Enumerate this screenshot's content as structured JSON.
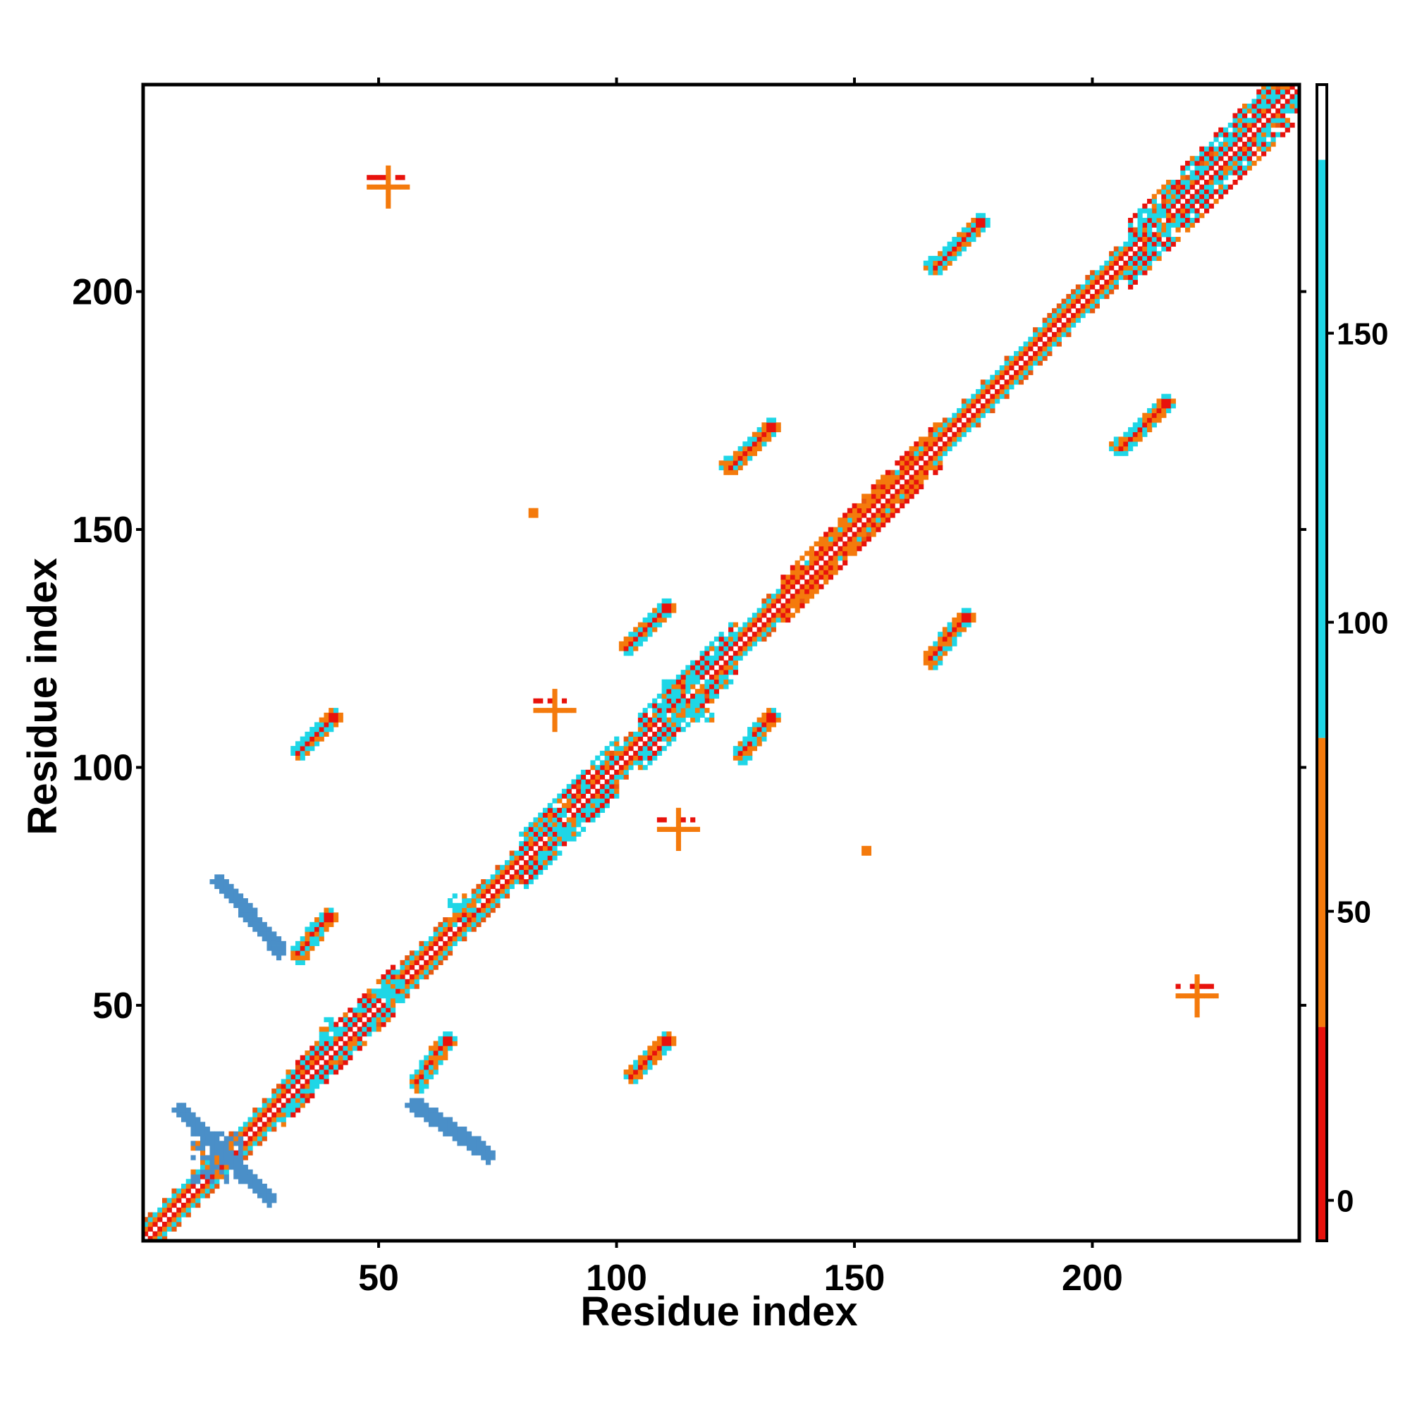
{
  "chart_data": {
    "type": "heatmap",
    "title": "",
    "xlabel": "Residue index",
    "ylabel": "Residue index",
    "xlim": [
      1,
      243
    ],
    "ylim": [
      1,
      243
    ],
    "x_ticks": [
      50,
      100,
      150,
      200
    ],
    "y_ticks": [
      50,
      100,
      150,
      200
    ],
    "colorbar": {
      "ticks": [
        0,
        50,
        100,
        150
      ],
      "range": [
        -7,
        193
      ],
      "bands": [
        {
          "from": -7,
          "to": 30,
          "color": "#e8120c"
        },
        {
          "from": 30,
          "to": 80,
          "color": "#f47a0c"
        },
        {
          "from": 80,
          "to": 180,
          "color": "#1fd6e6"
        },
        {
          "from": 180,
          "to": 193,
          "color": "#ffffff"
        }
      ]
    },
    "colors": {
      "red": "#e8120c",
      "orange": "#f47a0c",
      "dark_orange": "#e85a10",
      "cyan": "#1fd6e6",
      "steel_blue": "#4a8fc8",
      "frame": "#000000"
    },
    "features": [
      {
        "kind": "diagonal",
        "from": 1,
        "to": 243,
        "band": 4
      },
      {
        "kind": "parallel",
        "x": [
          30,
          53
        ],
        "y": [
          30,
          53
        ],
        "band": 2,
        "color": "cyan"
      },
      {
        "kind": "parallel",
        "x": [
          80,
          100
        ],
        "y": [
          80,
          100
        ],
        "band": 3,
        "color": "cyan"
      },
      {
        "kind": "parallel",
        "x": [
          105,
          125
        ],
        "y": [
          105,
          125
        ],
        "band": 3,
        "color": "cyan"
      },
      {
        "kind": "parallel",
        "x": [
          150,
          168
        ],
        "y": [
          150,
          168
        ],
        "band": 2,
        "color": "orange"
      },
      {
        "kind": "parallel",
        "x": [
          135,
          150
        ],
        "y": [
          135,
          150
        ],
        "band": 2,
        "color": "orange"
      },
      {
        "kind": "parallel",
        "x": [
          208,
          243
        ],
        "y": [
          208,
          243
        ],
        "band": 4,
        "color": "cyan"
      },
      {
        "kind": "cluster",
        "x": 16,
        "y": 18,
        "w": 10,
        "h": 10,
        "color": "steel_blue"
      },
      {
        "kind": "antidiag",
        "x": [
          9,
          27
        ],
        "y": [
          28,
          10
        ],
        "band": 1.6,
        "color": "steel_blue"
      },
      {
        "kind": "antidiag",
        "x": [
          17,
          29
        ],
        "y": [
          76,
          62
        ],
        "band": 1.6,
        "color": "steel_blue"
      },
      {
        "kind": "antidiag",
        "x": [
          58,
          73
        ],
        "y": [
          29,
          19
        ],
        "band": 1.6,
        "color": "steel_blue"
      },
      {
        "kind": "segment",
        "x": [
          33,
          39
        ],
        "y": [
          60,
          68
        ],
        "band": 1.5,
        "color": "red"
      },
      {
        "kind": "segment",
        "x": [
          33,
          40
        ],
        "y": [
          103,
          110
        ],
        "band": 1.5,
        "color": "red"
      },
      {
        "kind": "segment",
        "x": [
          102,
          110
        ],
        "y": [
          125,
          133
        ],
        "band": 1.5,
        "color": "red"
      },
      {
        "kind": "segment",
        "x": [
          126,
          132
        ],
        "y": [
          102,
          110
        ],
        "band": 1.5,
        "color": "red"
      },
      {
        "kind": "segment",
        "x": [
          103,
          110
        ],
        "y": [
          35,
          42
        ],
        "band": 1.5,
        "color": "red"
      },
      {
        "kind": "segment",
        "x": [
          58,
          64
        ],
        "y": [
          33,
          42
        ],
        "band": 1.5,
        "color": "red"
      },
      {
        "kind": "segment",
        "x": [
          123,
          132
        ],
        "y": [
          163,
          171
        ],
        "band": 1.5,
        "color": "red"
      },
      {
        "kind": "segment",
        "x": [
          205,
          215
        ],
        "y": [
          167,
          176
        ],
        "band": 1.5,
        "color": "red"
      },
      {
        "kind": "segment",
        "x": [
          166,
          176
        ],
        "y": [
          205,
          214
        ],
        "band": 1.5,
        "color": "red"
      },
      {
        "kind": "segment",
        "x": [
          166,
          173
        ],
        "y": [
          122,
          131
        ],
        "band": 1.5,
        "color": "red"
      },
      {
        "kind": "cluster",
        "x": 115,
        "y": 114,
        "w": 10,
        "h": 8,
        "color": "cyan"
      },
      {
        "kind": "cluster",
        "x": 68,
        "y": 70,
        "w": 6,
        "h": 6,
        "color": "cyan"
      },
      {
        "kind": "cluster",
        "x": 53,
        "y": 53,
        "w": 4,
        "h": 4,
        "color": "cyan"
      },
      {
        "kind": "cluster",
        "x": 40,
        "y": 45,
        "w": 4,
        "h": 4,
        "color": "cyan"
      },
      {
        "kind": "cluster",
        "x": 88,
        "y": 87,
        "w": 5,
        "h": 5,
        "color": "cyan"
      },
      {
        "kind": "cluster",
        "x": 213,
        "y": 214,
        "w": 6,
        "h": 6,
        "color": "cyan"
      },
      {
        "kind": "cross",
        "x": 87,
        "y": 112,
        "size": 4,
        "color": "orange"
      },
      {
        "kind": "cross",
        "x": 113,
        "y": 87,
        "size": 4,
        "color": "orange"
      },
      {
        "kind": "cross",
        "x": 222,
        "y": 52,
        "size": 4,
        "color": "orange"
      },
      {
        "kind": "cross",
        "x": 52,
        "y": 222,
        "size": 4,
        "color": "orange"
      },
      {
        "kind": "square",
        "x": 82,
        "y": 153,
        "color": "orange"
      },
      {
        "kind": "square",
        "x": 152,
        "y": 82,
        "color": "orange"
      }
    ]
  }
}
